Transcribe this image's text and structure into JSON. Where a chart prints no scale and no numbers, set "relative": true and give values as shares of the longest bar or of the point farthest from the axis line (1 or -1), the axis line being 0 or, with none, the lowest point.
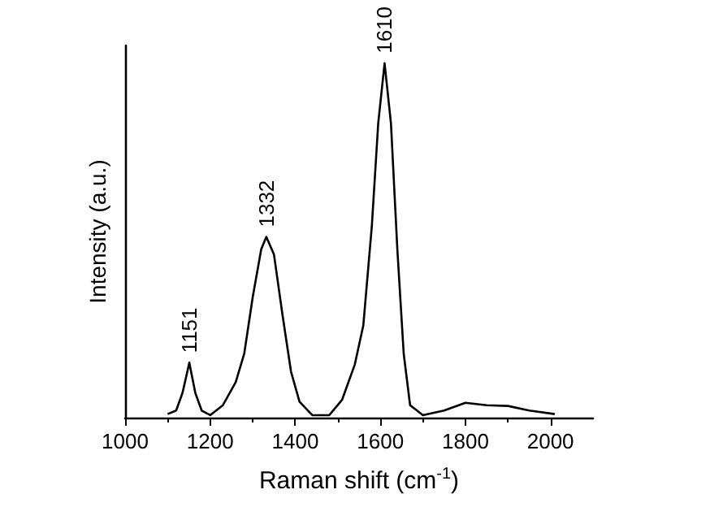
{
  "chart_data": {
    "type": "line",
    "xlabel": "Raman shift (cm$^{-1}$)",
    "ylabel": "Intensity (a.u.)",
    "relative": true,
    "xlim": [
      1000,
      2100
    ],
    "xticks": [
      1000,
      1200,
      1400,
      1600,
      1800,
      2000
    ],
    "grid": false,
    "marker": "none",
    "line_style": "solid",
    "series": [
      {
        "color": "#000000",
        "x": [
          1100,
          1120,
          1135,
          1151,
          1165,
          1180,
          1200,
          1230,
          1260,
          1280,
          1300,
          1320,
          1332,
          1350,
          1370,
          1390,
          1410,
          1440,
          1480,
          1510,
          1540,
          1560,
          1580,
          1595,
          1610,
          1625,
          1640,
          1655,
          1670,
          1700,
          1750,
          1800,
          1850,
          1900,
          1950,
          2010
        ],
        "values": [
          0.01,
          0.02,
          0.07,
          0.155,
          0.07,
          0.02,
          0.007,
          0.035,
          0.1,
          0.18,
          0.34,
          0.475,
          0.51,
          0.46,
          0.29,
          0.13,
          0.045,
          0.007,
          0.007,
          0.05,
          0.15,
          0.26,
          0.54,
          0.83,
          1,
          0.83,
          0.475,
          0.18,
          0.035,
          0.007,
          0.02,
          0.042,
          0.035,
          0.033,
          0.02,
          0.01
        ]
      }
    ],
    "annotations": [
      {
        "text": "1151",
        "x": 1151,
        "y": 0.155
      },
      {
        "text": "1332",
        "x": 1332,
        "y": 0.51
      },
      {
        "text": "1610",
        "x": 1610,
        "y": 1
      }
    ]
  }
}
